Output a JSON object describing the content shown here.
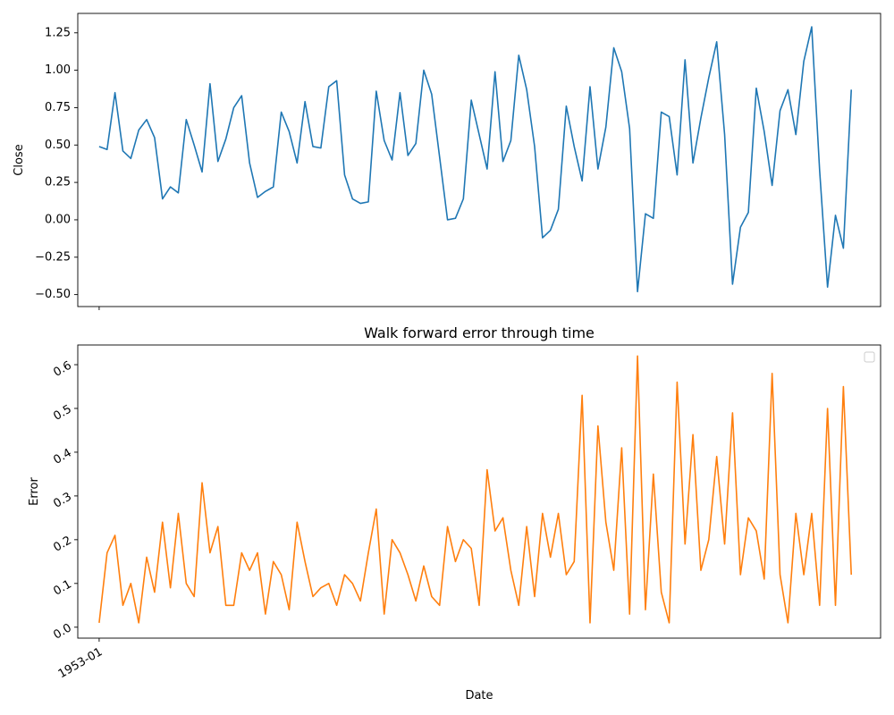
{
  "colors": {
    "top_series": "#1f77b4",
    "bottom_series": "#ff7f0e",
    "axes": "#000000",
    "background": "#ffffff"
  },
  "chart_data": [
    {
      "type": "line",
      "title": "",
      "xlabel": "",
      "ylabel": "Close",
      "ylim": [
        -0.58,
        1.38
      ],
      "yticks": [
        -0.5,
        -0.25,
        0.0,
        0.25,
        0.5,
        0.75,
        1.0,
        1.25
      ],
      "ytick_labels": [
        "−0.50",
        "−0.25",
        "0.00",
        "0.25",
        "0.50",
        "0.75",
        "1.00",
        "1.25"
      ],
      "x_tick_positions": [
        0
      ],
      "grid": false,
      "series": [
        {
          "values": [
            0.49,
            0.47,
            0.85,
            0.46,
            0.41,
            0.6,
            0.67,
            0.55,
            0.14,
            0.22,
            0.18,
            0.67,
            0.5,
            0.32,
            0.91,
            0.39,
            0.54,
            0.75,
            0.83,
            0.38,
            0.15,
            0.19,
            0.22,
            0.72,
            0.59,
            0.38,
            0.79,
            0.49,
            0.48,
            0.89,
            0.93,
            0.3,
            0.14,
            0.11,
            0.12,
            0.86,
            0.53,
            0.4,
            0.85,
            0.43,
            0.51,
            1.0,
            0.84,
            0.42,
            0.0,
            0.01,
            0.14,
            0.8,
            0.57,
            0.34,
            0.99,
            0.39,
            0.53,
            1.1,
            0.87,
            0.49,
            -0.12,
            -0.07,
            0.07,
            0.76,
            0.49,
            0.26,
            0.89,
            0.34,
            0.62,
            1.15,
            0.99,
            0.61,
            -0.48,
            0.04,
            0.01,
            0.72,
            0.69,
            0.3,
            1.07,
            0.38,
            0.68,
            0.95,
            1.19,
            0.57,
            -0.43,
            -0.05,
            0.05,
            0.88,
            0.59,
            0.23,
            0.73,
            0.87,
            0.57,
            1.06,
            1.29,
            0.33,
            -0.45,
            0.03,
            -0.19,
            0.87
          ]
        }
      ]
    },
    {
      "type": "line",
      "title": "Walk forward error through time",
      "xlabel": "Date",
      "ylabel": "Error",
      "ylim": [
        -0.025,
        0.645
      ],
      "yticks": [
        0.0,
        0.1,
        0.2,
        0.3,
        0.4,
        0.5,
        0.6
      ],
      "ytick_labels": [
        "0.0",
        "0.1",
        "0.2",
        "0.3",
        "0.4",
        "0.5",
        "0.6"
      ],
      "x_tick_positions": [
        0
      ],
      "x_tick_labels": [
        "1953-01"
      ],
      "grid": false,
      "legend": "top-right",
      "series": [
        {
          "values": [
            0.01,
            0.17,
            0.21,
            0.05,
            0.1,
            0.01,
            0.16,
            0.08,
            0.24,
            0.09,
            0.26,
            0.1,
            0.07,
            0.33,
            0.17,
            0.23,
            0.05,
            0.05,
            0.17,
            0.13,
            0.17,
            0.03,
            0.15,
            0.12,
            0.04,
            0.24,
            0.15,
            0.07,
            0.09,
            0.1,
            0.05,
            0.12,
            0.1,
            0.06,
            0.17,
            0.27,
            0.03,
            0.2,
            0.17,
            0.12,
            0.06,
            0.14,
            0.07,
            0.05,
            0.23,
            0.15,
            0.2,
            0.18,
            0.05,
            0.36,
            0.22,
            0.25,
            0.13,
            0.05,
            0.23,
            0.07,
            0.26,
            0.16,
            0.26,
            0.12,
            0.15,
            0.53,
            0.01,
            0.46,
            0.24,
            0.13,
            0.41,
            0.03,
            0.62,
            0.04,
            0.35,
            0.08,
            0.01,
            0.56,
            0.19,
            0.44,
            0.13,
            0.2,
            0.39,
            0.19,
            0.49,
            0.12,
            0.25,
            0.22,
            0.11,
            0.58,
            0.12,
            0.01,
            0.26,
            0.12,
            0.26,
            0.05,
            0.5,
            0.05,
            0.55,
            0.12
          ]
        }
      ]
    }
  ]
}
